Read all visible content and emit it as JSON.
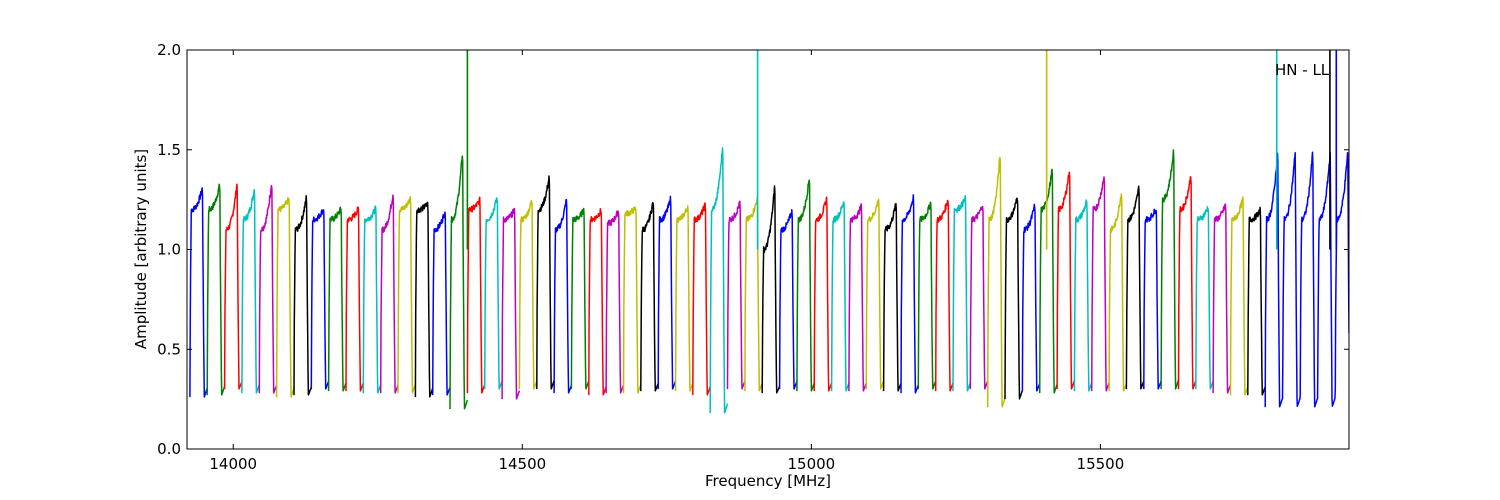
{
  "chart_data": {
    "type": "line",
    "title": "",
    "xlabel": "Frequency [MHz]",
    "ylabel": "Amplitude [arbitrary units]",
    "xlim": [
      13920,
      15930
    ],
    "ylim": [
      0.0,
      2.0
    ],
    "x_ticks": [
      14000,
      14500,
      15000,
      15500
    ],
    "y_ticks": [
      "0.0",
      "0.5",
      "1.0",
      "1.5",
      "2.0"
    ],
    "annotation": "HN - LL",
    "grid": false,
    "legend": "none",
    "channel_spacing_mhz": 30.3,
    "colors": [
      "#0000ff",
      "#008000",
      "#ff0000",
      "#00bfbf",
      "#bf00bf",
      "#bfbf00",
      "#000000"
    ],
    "series": [
      {
        "color": "#0000ff",
        "start": 13925,
        "end": 13955,
        "plateau": 1.2,
        "trough": 0.26,
        "peak": 1.31
      },
      {
        "color": "#008000",
        "start": 13955,
        "end": 13985,
        "plateau": 1.2,
        "trough": 0.27,
        "peak": 1.33
      },
      {
        "color": "#ff0000",
        "start": 13985,
        "end": 14015,
        "plateau": 1.1,
        "trough": 0.3,
        "peak": 1.34
      },
      {
        "color": "#00bfbf",
        "start": 14015,
        "end": 14045,
        "plateau": 1.15,
        "trough": 0.28,
        "peak": 1.31
      },
      {
        "color": "#bf00bf",
        "start": 14045,
        "end": 14075,
        "plateau": 1.1,
        "trough": 0.28,
        "peak": 1.35
      },
      {
        "color": "#bfbf00",
        "start": 14075,
        "end": 14105,
        "plateau": 1.2,
        "trough": 0.26,
        "peak": 1.26
      },
      {
        "color": "#000000",
        "start": 14105,
        "end": 14135,
        "plateau": 1.1,
        "trough": 0.27,
        "peak": 1.27
      },
      {
        "color": "#0000ff",
        "start": 14135,
        "end": 14165,
        "plateau": 1.15,
        "trough": 0.3,
        "peak": 1.21
      },
      {
        "color": "#008000",
        "start": 14165,
        "end": 14195,
        "plateau": 1.15,
        "trough": 0.29,
        "peak": 1.21
      },
      {
        "color": "#ff0000",
        "start": 14195,
        "end": 14225,
        "plateau": 1.15,
        "trough": 0.29,
        "peak": 1.21
      },
      {
        "color": "#00bfbf",
        "start": 14225,
        "end": 14255,
        "plateau": 1.15,
        "trough": 0.28,
        "peak": 1.21
      },
      {
        "color": "#bf00bf",
        "start": 14255,
        "end": 14285,
        "plateau": 1.1,
        "trough": 0.28,
        "peak": 1.29
      },
      {
        "color": "#bfbf00",
        "start": 14285,
        "end": 14315,
        "plateau": 1.2,
        "trough": 0.28,
        "peak": 1.26
      },
      {
        "color": "#000000",
        "start": 14315,
        "end": 14345,
        "plateau": 1.2,
        "trough": 0.26,
        "peak": 1.23
      },
      {
        "color": "#0000ff",
        "start": 14345,
        "end": 14375,
        "plateau": 1.1,
        "trough": 0.27,
        "peak": 1.2
      },
      {
        "color": "#008000",
        "start": 14375,
        "end": 14405,
        "plateau": 1.15,
        "trough": 0.2,
        "peak": 1.5
      },
      {
        "color": "#ff0000",
        "start": 14405,
        "end": 14435,
        "plateau": 1.2,
        "trough": 0.28,
        "peak": 1.25
      },
      {
        "color": "#00bfbf",
        "start": 14435,
        "end": 14465,
        "plateau": 1.15,
        "trough": 0.3,
        "peak": 1.27
      },
      {
        "color": "#bf00bf",
        "start": 14465,
        "end": 14495,
        "plateau": 1.15,
        "trough": 0.25,
        "peak": 1.2
      },
      {
        "color": "#bfbf00",
        "start": 14495,
        "end": 14525,
        "plateau": 1.15,
        "trough": 0.3,
        "peak": 1.25
      },
      {
        "color": "#000000",
        "start": 14525,
        "end": 14555,
        "plateau": 1.2,
        "trough": 0.3,
        "peak": 1.37
      },
      {
        "color": "#0000ff",
        "start": 14555,
        "end": 14585,
        "plateau": 1.1,
        "trough": 0.28,
        "peak": 1.26
      },
      {
        "color": "#008000",
        "start": 14585,
        "end": 14615,
        "plateau": 1.15,
        "trough": 0.3,
        "peak": 1.2
      },
      {
        "color": "#ff0000",
        "start": 14615,
        "end": 14645,
        "plateau": 1.15,
        "trough": 0.27,
        "peak": 1.2
      },
      {
        "color": "#bf00bf",
        "start": 14645,
        "end": 14675,
        "plateau": 1.13,
        "trough": 0.28,
        "peak": 1.2
      },
      {
        "color": "#bfbf00",
        "start": 14675,
        "end": 14705,
        "plateau": 1.18,
        "trough": 0.28,
        "peak": 1.21
      },
      {
        "color": "#000000",
        "start": 14705,
        "end": 14735,
        "plateau": 1.1,
        "trough": 0.29,
        "peak": 1.25
      },
      {
        "color": "#0000ff",
        "start": 14735,
        "end": 14765,
        "plateau": 1.15,
        "trough": 0.3,
        "peak": 1.26
      },
      {
        "color": "#bfbf00",
        "start": 14765,
        "end": 14795,
        "plateau": 1.15,
        "trough": 0.29,
        "peak": 1.22
      },
      {
        "color": "#ff0000",
        "start": 14795,
        "end": 14825,
        "plateau": 1.15,
        "trough": 0.27,
        "peak": 1.23
      },
      {
        "color": "#00bfbf",
        "start": 14825,
        "end": 14855,
        "plateau": 1.2,
        "trough": 0.18,
        "peak": 1.53
      },
      {
        "color": "#bf00bf",
        "start": 14855,
        "end": 14885,
        "plateau": 1.15,
        "trough": 0.3,
        "peak": 1.24
      },
      {
        "color": "#bfbf00",
        "start": 14885,
        "end": 14915,
        "plateau": 1.15,
        "trough": 0.29,
        "peak": 1.26
      },
      {
        "color": "#000000",
        "start": 14915,
        "end": 14945,
        "plateau": 1.0,
        "trough": 0.28,
        "peak": 1.33
      },
      {
        "color": "#0000ff",
        "start": 14945,
        "end": 14975,
        "plateau": 1.1,
        "trough": 0.3,
        "peak": 1.2
      },
      {
        "color": "#008000",
        "start": 14975,
        "end": 15005,
        "plateau": 1.15,
        "trough": 0.29,
        "peak": 1.37
      },
      {
        "color": "#ff0000",
        "start": 15005,
        "end": 15035,
        "plateau": 1.15,
        "trough": 0.29,
        "peak": 1.26
      },
      {
        "color": "#00bfbf",
        "start": 15035,
        "end": 15065,
        "plateau": 1.15,
        "trough": 0.29,
        "peak": 1.25
      },
      {
        "color": "#bf00bf",
        "start": 15065,
        "end": 15095,
        "plateau": 1.15,
        "trough": 0.29,
        "peak": 1.22
      },
      {
        "color": "#bfbf00",
        "start": 15095,
        "end": 15125,
        "plateau": 1.15,
        "trough": 0.3,
        "peak": 1.26
      },
      {
        "color": "#000000",
        "start": 15125,
        "end": 15155,
        "plateau": 1.1,
        "trough": 0.29,
        "peak": 1.24
      },
      {
        "color": "#0000ff",
        "start": 15155,
        "end": 15185,
        "plateau": 1.15,
        "trough": 0.28,
        "peak": 1.27
      },
      {
        "color": "#008000",
        "start": 15185,
        "end": 15215,
        "plateau": 1.15,
        "trough": 0.3,
        "peak": 1.24
      },
      {
        "color": "#ff0000",
        "start": 15215,
        "end": 15245,
        "plateau": 1.15,
        "trough": 0.29,
        "peak": 1.26
      },
      {
        "color": "#00bfbf",
        "start": 15245,
        "end": 15275,
        "plateau": 1.2,
        "trough": 0.29,
        "peak": 1.26
      },
      {
        "color": "#bf00bf",
        "start": 15275,
        "end": 15305,
        "plateau": 1.15,
        "trough": 0.3,
        "peak": 1.23
      },
      {
        "color": "#bfbf00",
        "start": 15305,
        "end": 15335,
        "plateau": 1.15,
        "trough": 0.21,
        "peak": 1.49
      },
      {
        "color": "#000000",
        "start": 15335,
        "end": 15365,
        "plateau": 1.15,
        "trough": 0.25,
        "peak": 1.27
      },
      {
        "color": "#0000ff",
        "start": 15365,
        "end": 15395,
        "plateau": 1.1,
        "trough": 0.29,
        "peak": 1.23
      },
      {
        "color": "#008000",
        "start": 15395,
        "end": 15425,
        "plateau": 1.2,
        "trough": 0.28,
        "peak": 1.41
      },
      {
        "color": "#ff0000",
        "start": 15425,
        "end": 15455,
        "plateau": 1.2,
        "trough": 0.3,
        "peak": 1.41
      },
      {
        "color": "#00bfbf",
        "start": 15455,
        "end": 15485,
        "plateau": 1.15,
        "trough": 0.29,
        "peak": 1.25
      },
      {
        "color": "#bf00bf",
        "start": 15485,
        "end": 15515,
        "plateau": 1.2,
        "trough": 0.29,
        "peak": 1.38
      },
      {
        "color": "#bfbf00",
        "start": 15515,
        "end": 15545,
        "plateau": 1.1,
        "trough": 0.29,
        "peak": 1.3
      },
      {
        "color": "#000000",
        "start": 15545,
        "end": 15575,
        "plateau": 1.15,
        "trough": 0.3,
        "peak": 1.32
      },
      {
        "color": "#0000ff",
        "start": 15575,
        "end": 15605,
        "plateau": 1.15,
        "trough": 0.3,
        "peak": 1.21
      },
      {
        "color": "#008000",
        "start": 15605,
        "end": 15635,
        "plateau": 1.25,
        "trough": 0.3,
        "peak": 1.5
      },
      {
        "color": "#ff0000",
        "start": 15635,
        "end": 15665,
        "plateau": 1.2,
        "trough": 0.3,
        "peak": 1.38
      },
      {
        "color": "#00bfbf",
        "start": 15665,
        "end": 15695,
        "plateau": 1.15,
        "trough": 0.3,
        "peak": 1.22
      },
      {
        "color": "#bf00bf",
        "start": 15695,
        "end": 15725,
        "plateau": 1.15,
        "trough": 0.28,
        "peak": 1.23
      },
      {
        "color": "#bfbf00",
        "start": 15725,
        "end": 15755,
        "plateau": 1.15,
        "trough": 0.27,
        "peak": 1.26
      },
      {
        "color": "#000000",
        "start": 15755,
        "end": 15785,
        "plateau": 1.15,
        "trough": 0.27,
        "peak": 1.2
      },
      {
        "color": "#0000ff",
        "start": 15785,
        "end": 15930,
        "plateau": 1.15,
        "trough": 0.21,
        "peak": 1.5
      }
    ],
    "spikes": [
      {
        "x": 14405,
        "y": 2.0,
        "color": "#008000"
      },
      {
        "x": 14907,
        "y": 2.0,
        "color": "#00bfbf"
      },
      {
        "x": 15407,
        "y": 2.0,
        "color": "#bfbf00"
      },
      {
        "x": 15805,
        "y": 2.0,
        "color": "#00bfbf"
      },
      {
        "x": 15897,
        "y": 2.0,
        "color": "#000000"
      },
      {
        "x": 15908,
        "y": 2.0,
        "color": "#0000ff"
      }
    ]
  }
}
